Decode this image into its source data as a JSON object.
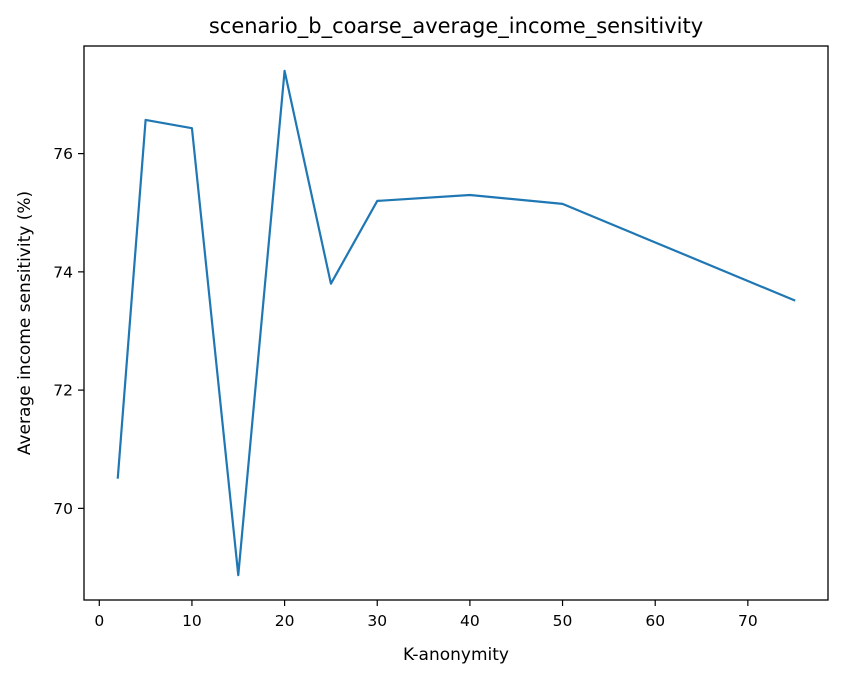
{
  "chart_data": {
    "type": "line",
    "title": "scenario_b_coarse_average_income_sensitivity",
    "xlabel": "K-anonymity",
    "ylabel": "Average income sensitivity (%)",
    "xlim": [
      -1.65,
      78.65
    ],
    "ylim": [
      68.45,
      77.82
    ],
    "xticks": [
      0,
      10,
      20,
      30,
      40,
      50,
      60,
      70
    ],
    "yticks": [
      70,
      72,
      74,
      76
    ],
    "grid": false,
    "series": [
      {
        "color": "#1f77b4",
        "x": [
          2,
          5,
          10,
          15,
          20,
          25,
          30,
          40,
          50,
          75
        ],
        "y": [
          70.52,
          76.57,
          76.43,
          68.87,
          77.4,
          73.8,
          75.2,
          75.3,
          75.15,
          73.52
        ]
      }
    ]
  }
}
